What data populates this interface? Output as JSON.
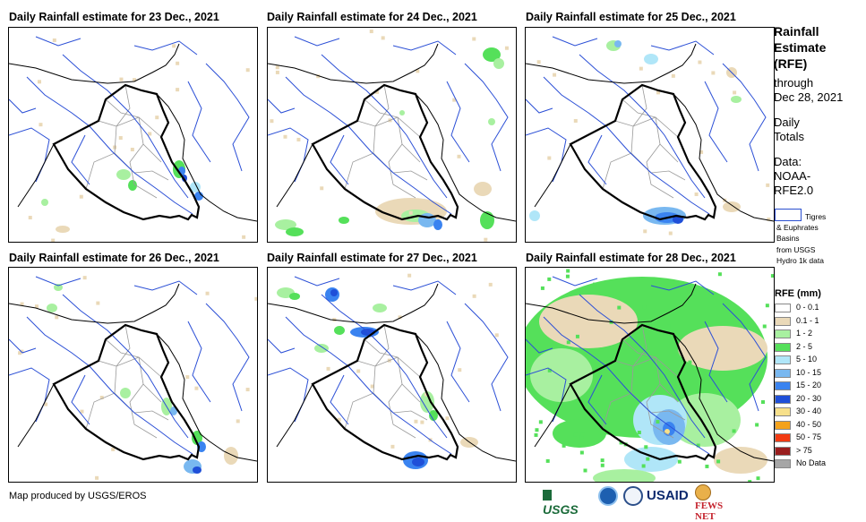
{
  "panels": [
    {
      "title": "Daily Rainfall estimate for 23 Dec., 2021"
    },
    {
      "title": "Daily Rainfall estimate for 24 Dec., 2021"
    },
    {
      "title": "Daily Rainfall estimate for 25 Dec., 2021"
    },
    {
      "title": "Daily Rainfall estimate for 26 Dec., 2021"
    },
    {
      "title": "Daily Rainfall estimate for 27 Dec., 2021"
    },
    {
      "title": "Daily Rainfall estimate for 28 Dec., 2021"
    }
  ],
  "legend": {
    "title_line1": "Rainfall",
    "title_line2": "Estimate",
    "title_line3": "(RFE)",
    "through": "through",
    "date": "Dec 28, 2021",
    "daily": "Daily",
    "totals": "Totals",
    "data_label": "Data:",
    "data_src1": "NOAA-",
    "data_src2": "RFE2.0",
    "basin_note1": "Tigres",
    "basin_note2": "& Euphrates",
    "basin_note3": "Basins",
    "basin_note4": "from USGS",
    "basin_note5": "Hydro 1k data",
    "rfe_title": "RFE (mm)",
    "classes": [
      {
        "label": "0 - 0.1",
        "color": "#ffffff"
      },
      {
        "label": "0.1 - 1",
        "color": "#ead9b8"
      },
      {
        "label": "1 - 2",
        "color": "#a8f0a0"
      },
      {
        "label": "2 - 5",
        "color": "#55e05a"
      },
      {
        "label": "5 - 10",
        "color": "#b0e6f8"
      },
      {
        "label": "10 - 15",
        "color": "#79b8f0"
      },
      {
        "label": "15 - 20",
        "color": "#3a83f0"
      },
      {
        "label": "20 - 30",
        "color": "#1f4fd8"
      },
      {
        "label": "30 - 40",
        "color": "#f7e08a"
      },
      {
        "label": "40 - 50",
        "color": "#f4a21a"
      },
      {
        "label": "50 - 75",
        "color": "#f23a12"
      },
      {
        "label": "> 75",
        "color": "#9a1e1e"
      },
      {
        "label": "No Data",
        "color": "#a6a6a6"
      }
    ]
  },
  "footer": {
    "credit": "Map produced by USGS/EROS",
    "logo_usgs": "USGS",
    "logo_usaid": "USAID",
    "logo_fews": "FEWS NET"
  }
}
